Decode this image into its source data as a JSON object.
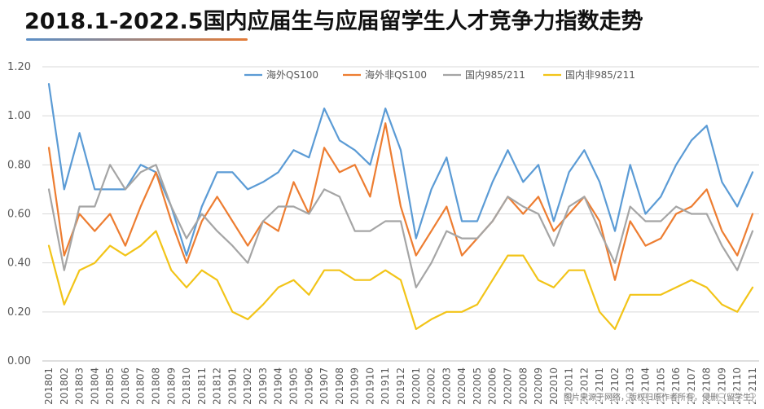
{
  "title": "2018.1-2022.5国内应届生与应届留学生人才竞争力指数走势",
  "colors": {
    "title_rule": "#5b8fc7",
    "title_rule_end": "#e37b37",
    "grid": "#d9d9d9",
    "axis": "#bfbfbf"
  },
  "watermark": "图片来源于网络，版权归原作者所有，侵删（留学生）",
  "chart_data": {
    "type": "line",
    "title": "2018.1-2022.5国内应届生与应届留学生人才竞争力指数走势",
    "xlabel": "",
    "ylabel": "",
    "ylim": [
      0,
      1.2
    ],
    "yticks": [
      "0.00",
      "0.20",
      "0.40",
      "0.60",
      "0.80",
      "1.00",
      "1.20"
    ],
    "grid": true,
    "legend_position": "top",
    "x": [
      "201801",
      "201802",
      "201803",
      "201804",
      "201805",
      "201806",
      "201807",
      "201808",
      "201809",
      "201810",
      "201811",
      "201812",
      "201901",
      "201902",
      "201903",
      "201904",
      "201905",
      "201906",
      "201907",
      "201908",
      "201909",
      "201910",
      "201911",
      "201912",
      "202001",
      "202002",
      "202003",
      "202004",
      "202005",
      "202006",
      "202007",
      "202008",
      "202009",
      "202010",
      "202011",
      "202012",
      "202101",
      "202102",
      "202103",
      "202104",
      "202105",
      "202106",
      "202107",
      "202108",
      "202109",
      "202110",
      "202111"
    ],
    "series": [
      {
        "name": "海外QS100",
        "color": "#5b9bd5",
        "values": [
          1.13,
          0.7,
          0.93,
          0.7,
          0.7,
          0.7,
          0.8,
          0.77,
          0.63,
          0.43,
          0.63,
          0.77,
          0.77,
          0.7,
          0.73,
          0.77,
          0.86,
          0.83,
          1.03,
          0.9,
          0.86,
          0.8,
          1.03,
          0.86,
          0.5,
          0.7,
          0.83,
          0.57,
          0.57,
          0.73,
          0.86,
          0.73,
          0.8,
          0.57,
          0.77,
          0.86,
          0.73,
          0.53,
          0.8,
          0.6,
          0.67,
          0.8,
          0.9,
          0.96,
          0.73,
          0.63,
          0.77
        ]
      },
      {
        "name": "海外非QS100",
        "color": "#ed7d31",
        "values": [
          0.87,
          0.43,
          0.6,
          0.53,
          0.6,
          0.47,
          0.63,
          0.77,
          0.57,
          0.4,
          0.57,
          0.67,
          0.57,
          0.47,
          0.57,
          0.53,
          0.73,
          0.6,
          0.87,
          0.77,
          0.8,
          0.67,
          0.97,
          0.63,
          0.43,
          0.53,
          0.63,
          0.43,
          0.5,
          0.57,
          0.67,
          0.6,
          0.67,
          0.53,
          0.6,
          0.67,
          0.57,
          0.33,
          0.57,
          0.47,
          0.5,
          0.6,
          0.63,
          0.7,
          0.53,
          0.43,
          0.6
        ]
      },
      {
        "name": "国内985/211",
        "color": "#a5a5a5",
        "values": [
          0.7,
          0.37,
          0.63,
          0.63,
          0.8,
          0.7,
          0.77,
          0.8,
          0.63,
          0.5,
          0.6,
          0.53,
          0.47,
          0.4,
          0.57,
          0.63,
          0.63,
          0.6,
          0.7,
          0.67,
          0.53,
          0.53,
          0.57,
          0.57,
          0.3,
          0.4,
          0.53,
          0.5,
          0.5,
          0.57,
          0.67,
          0.63,
          0.6,
          0.47,
          0.63,
          0.67,
          0.53,
          0.4,
          0.63,
          0.57,
          0.57,
          0.63,
          0.6,
          0.6,
          0.47,
          0.37,
          0.53
        ]
      },
      {
        "name": "国内非985/211",
        "color": "#f2c418",
        "values": [
          0.47,
          0.23,
          0.37,
          0.4,
          0.47,
          0.43,
          0.47,
          0.53,
          0.37,
          0.3,
          0.37,
          0.33,
          0.2,
          0.17,
          0.23,
          0.3,
          0.33,
          0.27,
          0.37,
          0.37,
          0.33,
          0.33,
          0.37,
          0.33,
          0.13,
          0.17,
          0.2,
          0.2,
          0.23,
          0.33,
          0.43,
          0.43,
          0.33,
          0.3,
          0.37,
          0.37,
          0.2,
          0.13,
          0.27,
          0.27,
          0.27,
          0.3,
          0.33,
          0.3,
          0.23,
          0.2,
          0.3
        ]
      }
    ]
  }
}
